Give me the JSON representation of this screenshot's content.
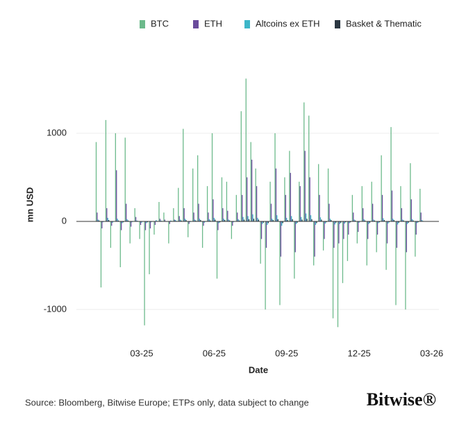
{
  "chart_data": {
    "type": "bar",
    "x_label": "Date",
    "y_label": "mn USD",
    "source": "Source: Bloomberg, Bitwise Europe; ETPs only, data subject to change",
    "logo": "Bitwise®",
    "x": [
      1.1,
      1.3,
      1.5,
      1.7,
      1.9,
      2.1,
      2.3,
      2.5,
      2.7,
      2.9,
      3.1,
      3.3,
      3.5,
      3.7,
      3.9,
      4.1,
      4.3,
      4.5,
      4.7,
      4.9,
      5.1,
      5.3,
      5.5,
      5.7,
      5.9,
      6.1,
      6.3,
      6.5,
      6.7,
      6.9,
      7.1,
      7.3,
      7.5,
      7.7,
      7.9,
      8.1,
      8.3,
      8.5,
      8.7,
      8.9,
      9.1,
      9.3,
      9.5,
      9.7,
      9.9,
      10.1,
      10.3,
      10.5,
      10.7,
      10.9,
      11.1,
      11.3,
      11.5,
      11.7,
      11.9,
      12.1,
      12.3,
      12.5,
      12.7,
      12.9,
      13.1,
      13.3,
      13.5,
      13.7,
      13.9,
      14.1,
      14.3,
      14.5
    ],
    "series": [
      {
        "name": "BTC",
        "color": "#6cba8b",
        "values": [
          900,
          -750,
          1150,
          -300,
          1000,
          -520,
          950,
          -250,
          150,
          -200,
          -1180,
          -600,
          -150,
          220,
          100,
          -250,
          150,
          380,
          1050,
          -180,
          600,
          750,
          -300,
          400,
          1000,
          -650,
          500,
          450,
          -200,
          300,
          1250,
          1620,
          900,
          600,
          -480,
          -1000,
          450,
          1000,
          -950,
          500,
          800,
          -650,
          450,
          1350,
          1200,
          -500,
          650,
          -330,
          600,
          -1100,
          -1200,
          -700,
          -450,
          300,
          -250,
          400,
          -500,
          450,
          -350,
          750,
          -550,
          1070,
          -950,
          400,
          -1000,
          660,
          -400,
          370
        ]
      },
      {
        "name": "ETH",
        "color": "#6a4c9c",
        "values": [
          100,
          -80,
          150,
          -50,
          580,
          -100,
          200,
          -60,
          50,
          -40,
          -100,
          -80,
          -40,
          30,
          20,
          -30,
          20,
          60,
          150,
          -30,
          100,
          200,
          -50,
          100,
          250,
          -100,
          150,
          120,
          -50,
          100,
          300,
          500,
          700,
          400,
          -200,
          -300,
          200,
          600,
          -400,
          300,
          550,
          -350,
          400,
          800,
          500,
          -400,
          300,
          -200,
          200,
          -300,
          -250,
          -200,
          -150,
          100,
          -120,
          150,
          -200,
          200,
          -150,
          300,
          -250,
          350,
          -300,
          150,
          -350,
          250,
          -150,
          100
        ]
      },
      {
        "name": "Altcoins ex ETH",
        "color": "#3db6c8",
        "values": [
          20,
          -10,
          40,
          -15,
          30,
          -20,
          25,
          -10,
          10,
          -15,
          -20,
          -10,
          15,
          10,
          -5,
          10,
          15,
          20,
          30,
          -10,
          20,
          30,
          -15,
          25,
          40,
          -20,
          30,
          20,
          -10,
          25,
          50,
          60,
          80,
          40,
          -30,
          -40,
          30,
          70,
          -50,
          40,
          60,
          -30,
          50,
          90,
          70,
          -40,
          45,
          -25,
          30,
          -35,
          -30,
          -25,
          -20,
          20,
          -15,
          25,
          -30,
          20,
          -20,
          35,
          -25,
          30,
          -35,
          20,
          -30,
          25,
          -20,
          15
        ]
      },
      {
        "name": "Basket & Thematic",
        "color": "#2b3742",
        "values": [
          10,
          -5,
          15,
          -5,
          10,
          -10,
          10,
          -5,
          5,
          -5,
          -10,
          -5,
          5,
          5,
          -5,
          5,
          5,
          10,
          15,
          -5,
          10,
          15,
          -5,
          10,
          20,
          -10,
          15,
          10,
          -5,
          10,
          20,
          25,
          30,
          20,
          -15,
          -20,
          15,
          25,
          -20,
          15,
          25,
          -15,
          20,
          30,
          25,
          -20,
          20,
          -10,
          15,
          -15,
          -15,
          -10,
          -10,
          10,
          -5,
          10,
          -15,
          10,
          -10,
          15,
          -10,
          15,
          -15,
          10,
          -15,
          10,
          -10,
          5
        ]
      }
    ],
    "xlim": [
      0.3,
      15.3
    ],
    "xticks": [
      {
        "value": 3,
        "label": "03-25"
      },
      {
        "value": 6,
        "label": "06-25"
      },
      {
        "value": 9,
        "label": "09-25"
      },
      {
        "value": 12,
        "label": "12-25"
      },
      {
        "value": 15,
        "label": "03-26"
      }
    ],
    "ylim": [
      -1300,
      2000
    ],
    "yticks": [
      -1000,
      0,
      1000
    ],
    "grid": true
  }
}
